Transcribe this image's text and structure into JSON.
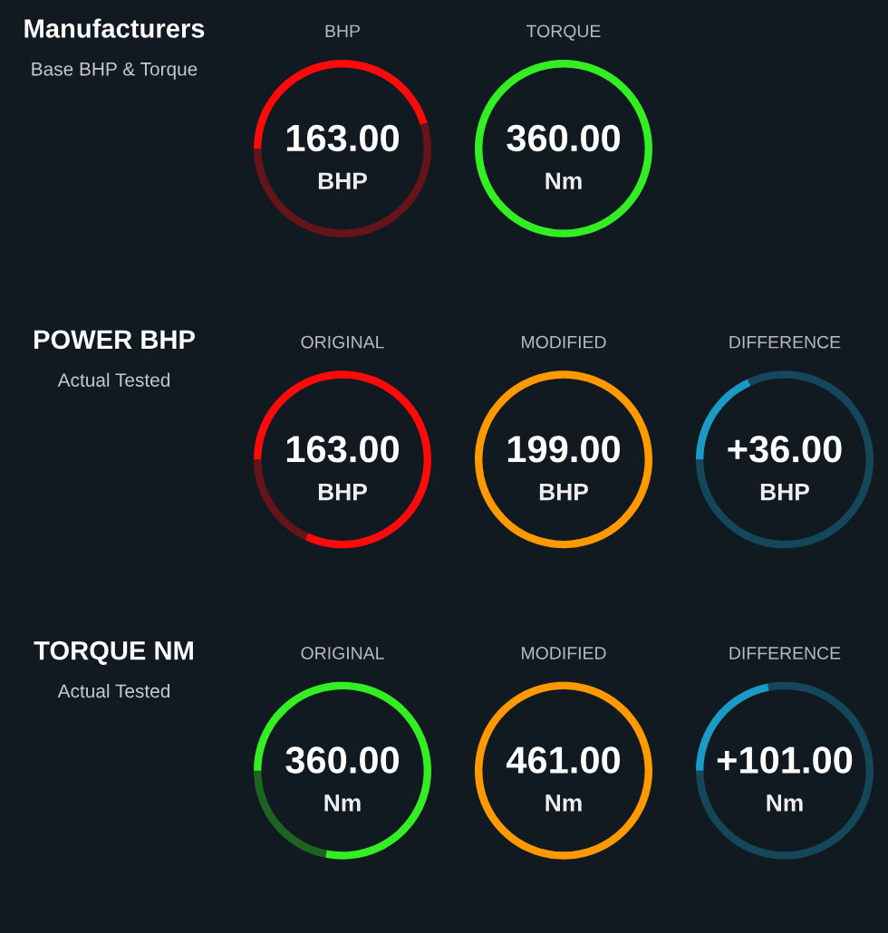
{
  "chart_data": [
    {
      "type": "other",
      "title": "Manufacturers",
      "subtitle": "Base BHP & Torque",
      "categories": [
        "BHP",
        "TORQUE"
      ],
      "values": [
        163.0,
        360.0
      ],
      "value_labels": [
        "163.00",
        "360.00"
      ],
      "annotations": [
        "BHP",
        "Nm"
      ],
      "colors": [
        "#ff0a0a",
        "#33ee22"
      ]
    },
    {
      "type": "other",
      "title": "POWER BHP",
      "subtitle": "Actual Tested",
      "categories": [
        "ORIGINAL",
        "MODIFIED",
        "DIFFERENCE"
      ],
      "values": [
        163.0,
        199.0,
        36.0
      ],
      "value_labels": [
        "163.00",
        "199.00",
        "+36.00"
      ],
      "annotations": [
        "BHP",
        "BHP",
        "BHP"
      ],
      "colors": [
        "#ff0a0a",
        "#ff9900",
        "#1a9bc6"
      ]
    },
    {
      "type": "other",
      "title": "TORQUE NM",
      "subtitle": "Actual Tested",
      "categories": [
        "ORIGINAL",
        "MODIFIED",
        "DIFFERENCE"
      ],
      "values": [
        360.0,
        461.0,
        101.0
      ],
      "value_labels": [
        "360.00",
        "461.00",
        "+101.00"
      ],
      "annotations": [
        "Nm",
        "Nm",
        "Nm"
      ],
      "colors": [
        "#33ee22",
        "#ff9900",
        "#1a9bc6"
      ]
    }
  ]
}
